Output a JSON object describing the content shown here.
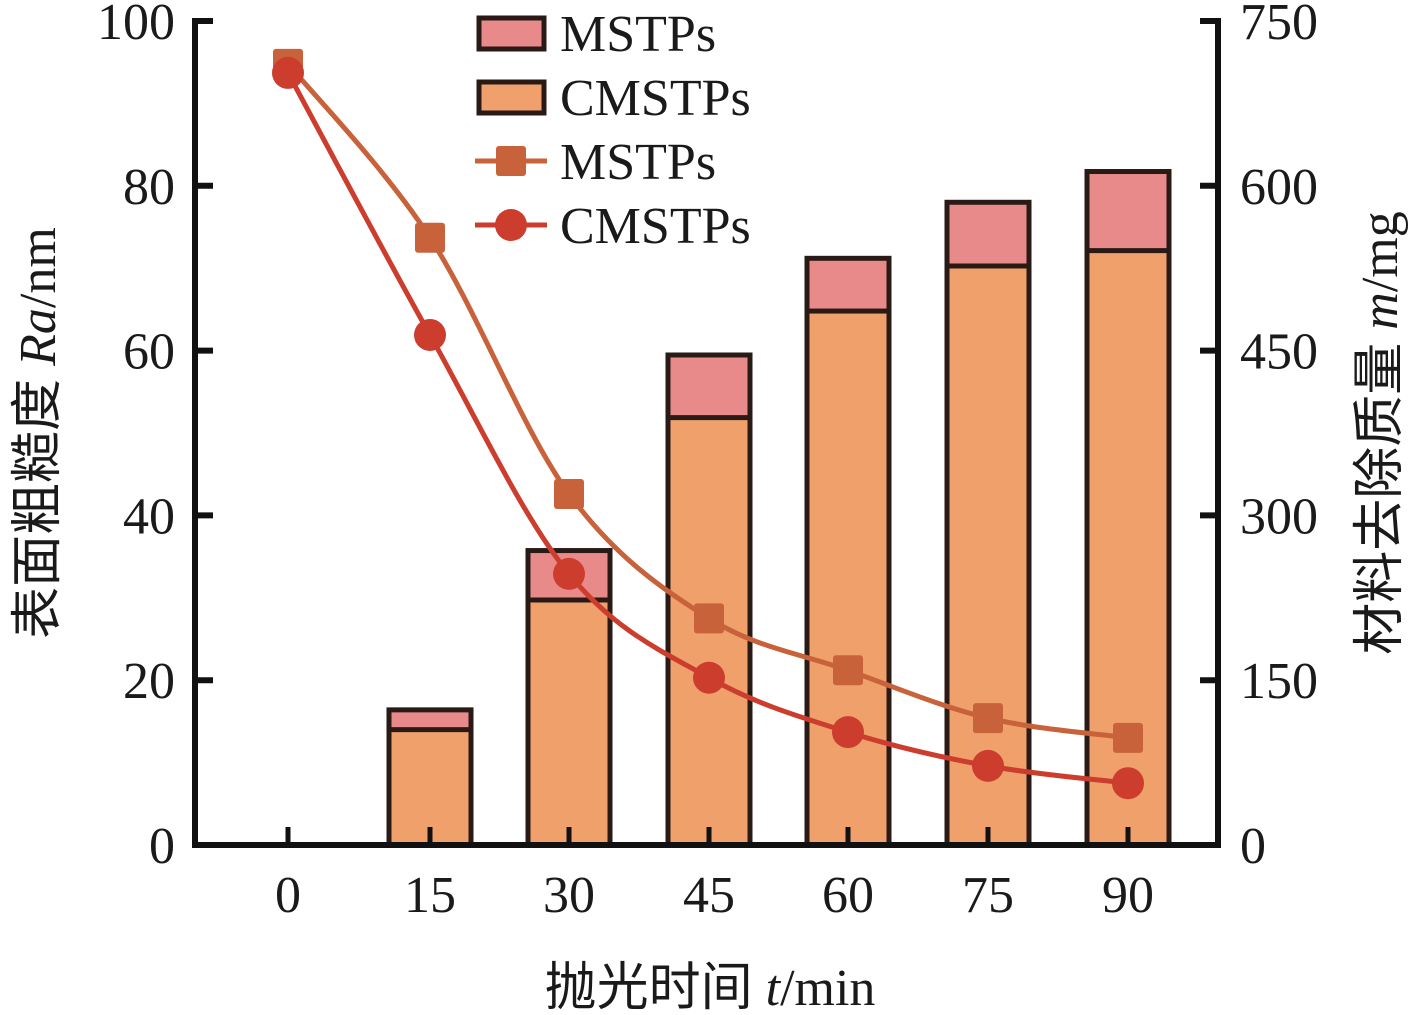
{
  "chart_data": {
    "type": "bar",
    "title": "",
    "categories": [
      "0",
      "15",
      "30",
      "45",
      "60",
      "75",
      "90"
    ],
    "x": [
      0,
      15,
      30,
      45,
      60,
      75,
      90
    ],
    "xlabel": "抛光时间 t/min",
    "xlabel_parts": {
      "prefix": "抛光时间 ",
      "var": "t",
      "suffix": "/min"
    },
    "ylabel": "表面粗糙度 Ra/nm",
    "ylabel_parts": {
      "prefix": "表面粗糙度 ",
      "var": "Ra",
      "suffix": "/nm"
    },
    "ylabel_right": "材料去除质量 m/mg",
    "ylabel_right_parts": {
      "prefix": "材料去除质量 ",
      "var": "m",
      "suffix": "/mg"
    },
    "ylim": [
      0,
      100
    ],
    "ylim_right": [
      0,
      750
    ],
    "yticks": [
      0,
      20,
      40,
      60,
      80,
      100
    ],
    "yticks_right": [
      0,
      150,
      300,
      450,
      600,
      750
    ],
    "grid": false,
    "legend_position": "top-center",
    "bar_series": [
      {
        "name": "CMSTPs",
        "axis": "right",
        "color": "#EFA06B",
        "values": [
          0,
          105,
          223,
          389,
          486,
          527,
          541
        ]
      },
      {
        "name": "MSTPs",
        "axis": "right",
        "color": "#E88A8A",
        "values": [
          0,
          123,
          268,
          446,
          534,
          585,
          613
        ]
      }
    ],
    "series": [
      {
        "name": "MSTPs",
        "axis": "left",
        "marker": "square",
        "color": "#C8623A",
        "values": [
          94.8,
          73.7,
          42.6,
          27.5,
          21.2,
          15.4,
          13.0
        ]
      },
      {
        "name": "CMSTPs",
        "axis": "left",
        "marker": "circle",
        "color": "#CC3D2E",
        "values": [
          93.7,
          61.9,
          32.9,
          20.3,
          13.7,
          9.6,
          7.5
        ]
      }
    ],
    "legend": [
      {
        "label": "MSTPs",
        "kind": "bar",
        "color": "#E88A8A"
      },
      {
        "label": "CMSTPs",
        "kind": "bar",
        "color": "#EFA06B"
      },
      {
        "label": "MSTPs",
        "kind": "line-square",
        "color": "#C8623A"
      },
      {
        "label": "CMSTPs",
        "kind": "line-circle",
        "color": "#CC3D2E"
      }
    ]
  }
}
